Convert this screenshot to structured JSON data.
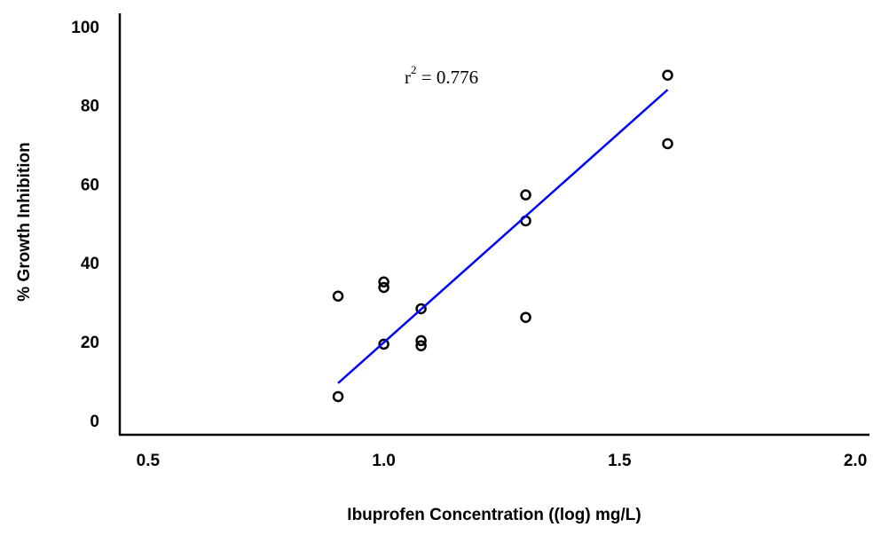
{
  "chart_data": {
    "type": "scatter",
    "xlabel": "Ibuprofen Concentration ((log) mg/L)",
    "ylabel": "% Growth Inhibition",
    "annotation": {
      "base": "r",
      "sup": "2",
      "text": " = 0.776"
    },
    "series": [
      {
        "name": "data",
        "color": "#000000",
        "x": [
          0.903,
          0.903,
          1.0,
          1.0,
          1.0,
          1.079,
          1.079,
          1.079,
          1.301,
          1.301,
          1.301,
          1.602,
          1.602
        ],
        "values": [
          6.5,
          32,
          35.6,
          34.2,
          19.8,
          28.8,
          20.7,
          19.4,
          57.7,
          51.1,
          26.6,
          88.1,
          70.7
        ]
      },
      {
        "name": "fit",
        "color": "#0000ff",
        "x": [
          0.903,
          1.602
        ],
        "values": [
          9.9,
          84.4
        ]
      }
    ],
    "xlim": [
      0.44,
      2.03
    ],
    "ylim": [
      -3.2,
      103.8
    ],
    "xticks": [
      0.5,
      {
        "value": 1,
        "label": "1.0"
      },
      1.5,
      {
        "value": 2,
        "label": "2.0"
      }
    ],
    "yticks": [
      0,
      20,
      40,
      60,
      80,
      100
    ],
    "grid": false
  }
}
